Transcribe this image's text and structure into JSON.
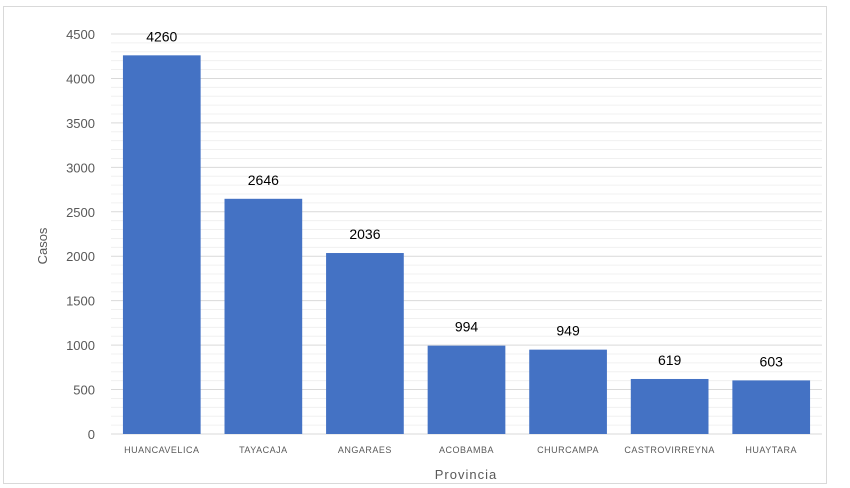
{
  "chart_data": {
    "type": "bar",
    "title": "",
    "xlabel": "Provincia",
    "ylabel": "Casos",
    "categories": [
      "HUANCAVELICA",
      "TAYACAJA",
      "ANGARAES",
      "ACOBAMBA",
      "CHURCAMPA",
      "CASTROVIRREYNA",
      "HUAYTARA"
    ],
    "values": [
      4260,
      2646,
      2036,
      994,
      949,
      619,
      603
    ],
    "ylim": [
      0,
      4500
    ],
    "yticks": [
      0,
      500,
      1000,
      1500,
      2000,
      2500,
      3000,
      3500,
      4000,
      4500
    ],
    "minor_gridlines": true,
    "legend": "none",
    "bar_color": "#4472c4",
    "gridline_color": "#d9d9d9"
  }
}
